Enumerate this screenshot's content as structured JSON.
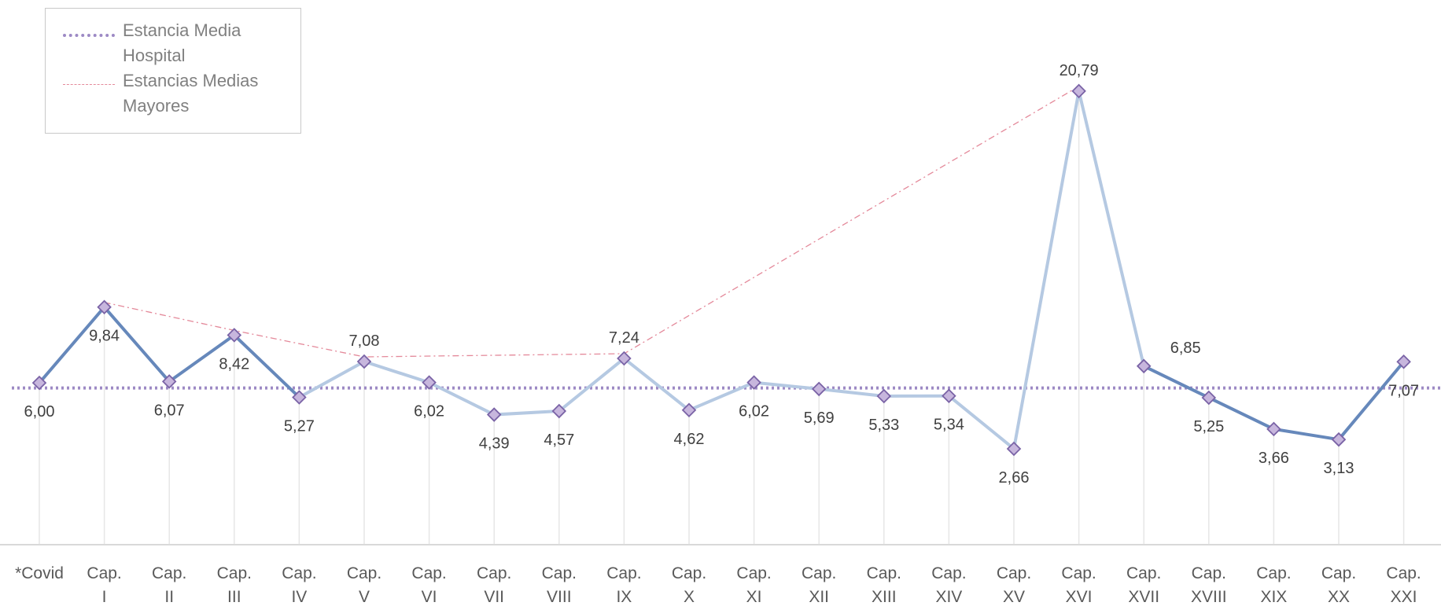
{
  "legend": {
    "hospital_label": "Estancia Media Hospital",
    "mayores_label": "Estancias Medias Mayores"
  },
  "colors": {
    "hospital_line": "#9d8ac5",
    "mayores_line": "#e4899a",
    "series_dark": "#6688bb",
    "series_light": "#b5c9e2",
    "marker_fill": "#c7b6dd",
    "marker_stroke": "#7a63a6",
    "label_text": "#404040",
    "axis_text": "#595959",
    "grid": "#e6e6e6"
  },
  "chart_data": {
    "type": "line",
    "categories": [
      [
        "*Covid"
      ],
      [
        "Cap.",
        "I"
      ],
      [
        "Cap.",
        "II"
      ],
      [
        "Cap.",
        "III"
      ],
      [
        "Cap.",
        "IV"
      ],
      [
        "Cap.",
        "V"
      ],
      [
        "Cap.",
        "VI"
      ],
      [
        "Cap.",
        "VII"
      ],
      [
        "Cap.",
        "VIII"
      ],
      [
        "Cap.",
        "IX"
      ],
      [
        "Cap.",
        "X"
      ],
      [
        "Cap.",
        "XI"
      ],
      [
        "Cap.",
        "XII"
      ],
      [
        "Cap.",
        "XIII"
      ],
      [
        "Cap.",
        "XIV"
      ],
      [
        "Cap.",
        "XV"
      ],
      [
        "Cap.",
        "XVI"
      ],
      [
        "Cap.",
        "XVII"
      ],
      [
        "Cap.",
        "XVIII"
      ],
      [
        "Cap.",
        "XIX"
      ],
      [
        "Cap.",
        "XX"
      ],
      [
        "Cap.",
        "XXI"
      ]
    ],
    "values": [
      6.0,
      9.84,
      6.07,
      8.42,
      5.27,
      7.08,
      6.02,
      4.39,
      4.57,
      7.24,
      4.62,
      6.02,
      5.69,
      5.33,
      5.34,
      2.66,
      20.79,
      6.85,
      5.25,
      3.66,
      3.13,
      7.07
    ],
    "data_labels": [
      "6,00",
      "9,84",
      "6,07",
      "8,42",
      "5,27",
      "7,08",
      "6,02",
      "4,39",
      "4,57",
      "7,24",
      "4,62",
      "6,02",
      "5,69",
      "5,33",
      "5,34",
      "2,66",
      "20,79",
      "6,85",
      "5,25",
      "3,66",
      "3,13",
      "7,07"
    ],
    "label_positions": [
      "below",
      "below",
      "below",
      "below",
      "below",
      "above",
      "below",
      "below",
      "below",
      "above",
      "below",
      "below",
      "below",
      "below",
      "below",
      "below",
      "above",
      "above-right",
      "below",
      "below",
      "below",
      "below"
    ],
    "segment_style": [
      "dark",
      "dark",
      "dark",
      "dark",
      "light",
      "light",
      "light",
      "light",
      "light",
      "light",
      "light",
      "light",
      "light",
      "light",
      "light",
      "light",
      "light",
      "dark",
      "dark",
      "dark",
      "dark"
    ],
    "hospital_average": 5.74,
    "mayores_indices": [
      1,
      3,
      5,
      9,
      16
    ],
    "ylim": [
      -2.2,
      21.7
    ],
    "grid": "vertical"
  }
}
